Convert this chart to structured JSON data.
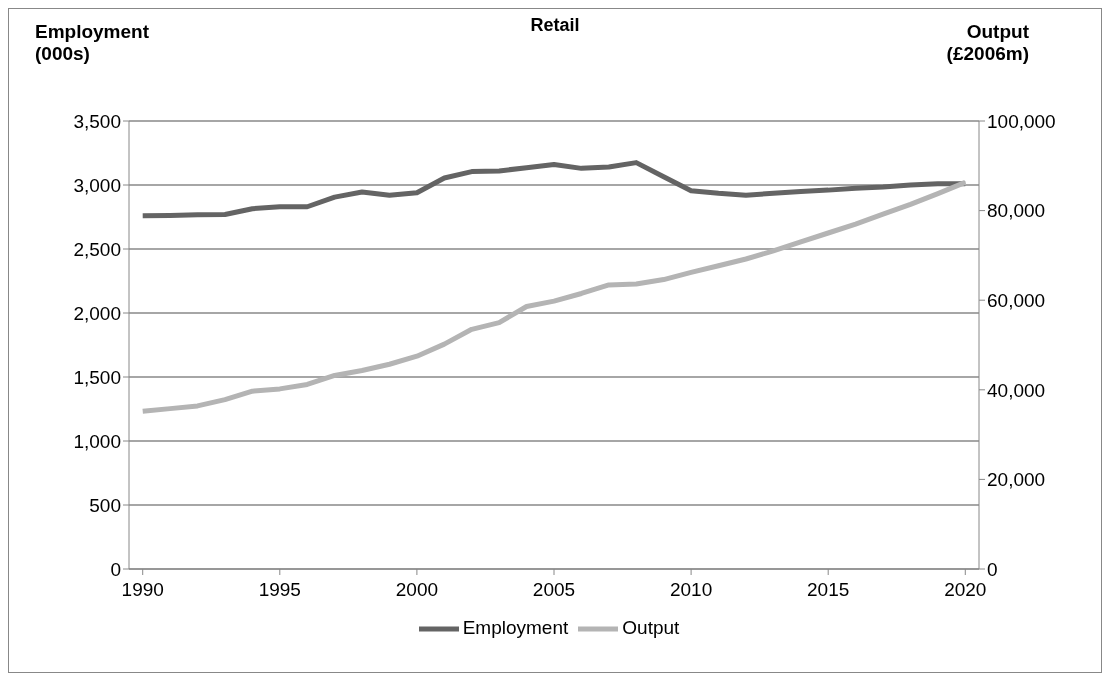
{
  "chart_data": {
    "type": "line",
    "title": "Retail",
    "ylabel": "Employment\n(000s)",
    "y2label": "Output\n(£2006m)",
    "x": [
      1990,
      1991,
      1992,
      1993,
      1994,
      1995,
      1996,
      1997,
      1998,
      1999,
      2000,
      2001,
      2002,
      2003,
      2004,
      2005,
      2006,
      2007,
      2008,
      2009,
      2010,
      2011,
      2012,
      2013,
      2014,
      2015,
      2016,
      2017,
      2018,
      2019,
      2020
    ],
    "series": [
      {
        "name": "Employment",
        "color": "#646464",
        "values": [
          2760,
          2762,
          2768,
          2770,
          2815,
          2830,
          2830,
          2905,
          2945,
          2920,
          2940,
          3055,
          3105,
          3110,
          3135,
          3160,
          3130,
          3140,
          3175,
          3065,
          2955,
          2935,
          2920,
          2935,
          2950,
          2960,
          2975,
          2985,
          3000,
          3010,
          3010
        ]
      },
      {
        "name": "Output",
        "color": "#b4b4b4",
        "axis": "y2",
        "values": [
          35200,
          35800,
          36400,
          37800,
          39700,
          40200,
          41200,
          43200,
          44300,
          45700,
          47500,
          50200,
          53500,
          55000,
          58600,
          59800,
          61500,
          63400,
          63600,
          64600,
          66200,
          67700,
          69200,
          71000,
          73000,
          75000,
          77000,
          79200,
          81400,
          83800,
          86300
        ]
      }
    ],
    "xlim": [
      1989.5,
      2020.5
    ],
    "xticks": [
      1990,
      1995,
      2000,
      2005,
      2010,
      2015,
      2020
    ],
    "ylim": [
      0,
      3500
    ],
    "yticks": [
      0,
      500,
      {
        "value": 1000,
        "label": "1,000"
      },
      {
        "value": 1500,
        "label": "1,500"
      },
      {
        "value": 2000,
        "label": "2,000"
      },
      {
        "value": 2500,
        "label": "2,500"
      },
      {
        "value": 3000,
        "label": "3,000"
      },
      {
        "value": 3500,
        "label": "3,500"
      }
    ],
    "y2lim": [
      0,
      100000
    ],
    "y2ticks": [
      0,
      {
        "value": 20000,
        "label": "20,000"
      },
      {
        "value": 40000,
        "label": "40,000"
      },
      {
        "value": 60000,
        "label": "60,000"
      },
      {
        "value": 80000,
        "label": "80,000"
      },
      {
        "value": 100000,
        "label": "100,000"
      }
    ],
    "grid": "y",
    "legend": "bottom",
    "marker": "none",
    "line_style": "solid"
  }
}
